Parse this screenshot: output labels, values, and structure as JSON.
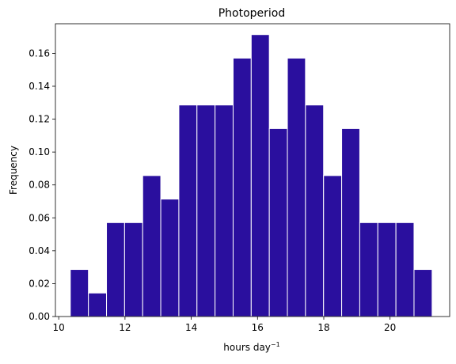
{
  "chart_data": {
    "type": "bar",
    "title": "Photoperiod",
    "xlabel": "hours day",
    "xlabel_superscript": "−1",
    "ylabel": "Frequency",
    "xlim": [
      9.9,
      21.8
    ],
    "ylim": [
      0,
      0.178
    ],
    "xticks": [
      10,
      12,
      14,
      16,
      18,
      20
    ],
    "xtick_labels": [
      "10",
      "12",
      "14",
      "16",
      "18",
      "20"
    ],
    "yticks": [
      0,
      0.02,
      0.04,
      0.06,
      0.08,
      0.1,
      0.12,
      0.14,
      0.16
    ],
    "ytick_labels": [
      "0.00",
      "0.02",
      "0.04",
      "0.06",
      "0.08",
      "0.10",
      "0.12",
      "0.14",
      "0.16"
    ],
    "bin_start": 10.35,
    "bin_width": 0.546,
    "values": [
      0.0286,
      0.0143,
      0.0571,
      0.0571,
      0.0857,
      0.0714,
      0.1286,
      0.1286,
      0.1286,
      0.1571,
      0.1714,
      0.1143,
      0.1571,
      0.1286,
      0.0857,
      0.1143,
      0.0571,
      0.0571,
      0.0571,
      0.0286
    ],
    "bar_color": "#2a0f9e",
    "edge_color": "#ffffff",
    "grid": false,
    "legend": "none"
  }
}
